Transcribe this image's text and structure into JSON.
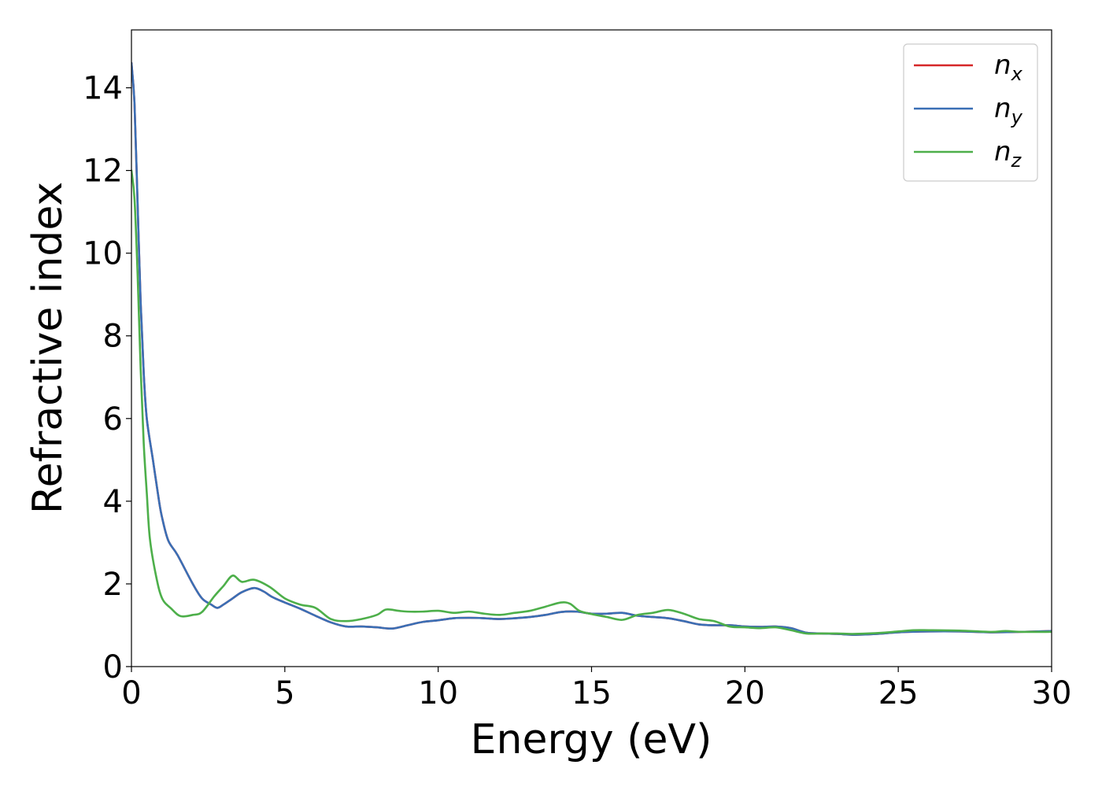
{
  "chart_data": {
    "type": "line",
    "xlabel": "Energy (eV)",
    "ylabel": "Refractive index",
    "xlim": [
      0,
      30
    ],
    "ylim": [
      0,
      15.4
    ],
    "xticks": [
      "0",
      "5",
      "10",
      "15",
      "20",
      "25",
      "30"
    ],
    "yticks": [
      "0",
      "2",
      "4",
      "6",
      "8",
      "10",
      "12",
      "14"
    ],
    "grid": false,
    "legend_position": "top-right",
    "series": [
      {
        "name": "n",
        "subscript": "x",
        "color": "#d62728",
        "points": [
          [
            0,
            14.6
          ],
          [
            0.1,
            13.6
          ],
          [
            0.2,
            11.2
          ],
          [
            0.3,
            8.8
          ],
          [
            0.4,
            7.1
          ],
          [
            0.5,
            6.0
          ],
          [
            0.7,
            5.0
          ],
          [
            0.9,
            4.0
          ],
          [
            1.0,
            3.6
          ],
          [
            1.2,
            3.05
          ],
          [
            1.5,
            2.7
          ],
          [
            2.0,
            2.0
          ],
          [
            2.3,
            1.65
          ],
          [
            2.6,
            1.5
          ],
          [
            2.8,
            1.42
          ],
          [
            3.0,
            1.5
          ],
          [
            3.3,
            1.65
          ],
          [
            3.6,
            1.8
          ],
          [
            4.0,
            1.9
          ],
          [
            4.3,
            1.82
          ],
          [
            4.6,
            1.68
          ],
          [
            5.0,
            1.55
          ],
          [
            5.5,
            1.4
          ],
          [
            6.0,
            1.23
          ],
          [
            6.5,
            1.07
          ],
          [
            7.0,
            0.97
          ],
          [
            7.5,
            0.97
          ],
          [
            8.0,
            0.95
          ],
          [
            8.5,
            0.92
          ],
          [
            9.0,
            1.0
          ],
          [
            9.5,
            1.08
          ],
          [
            10.0,
            1.12
          ],
          [
            10.5,
            1.17
          ],
          [
            11.0,
            1.18
          ],
          [
            11.5,
            1.17
          ],
          [
            12.0,
            1.15
          ],
          [
            12.5,
            1.17
          ],
          [
            13.0,
            1.2
          ],
          [
            13.5,
            1.25
          ],
          [
            14.0,
            1.32
          ],
          [
            14.5,
            1.33
          ],
          [
            15.0,
            1.28
          ],
          [
            15.5,
            1.28
          ],
          [
            16.0,
            1.3
          ],
          [
            16.5,
            1.23
          ],
          [
            17.0,
            1.2
          ],
          [
            17.5,
            1.17
          ],
          [
            18.0,
            1.1
          ],
          [
            18.5,
            1.02
          ],
          [
            19.0,
            1.0
          ],
          [
            19.5,
            1.0
          ],
          [
            20.0,
            0.97
          ],
          [
            20.5,
            0.96
          ],
          [
            21.0,
            0.97
          ],
          [
            21.5,
            0.93
          ],
          [
            22.0,
            0.82
          ],
          [
            22.5,
            0.8
          ],
          [
            23.0,
            0.79
          ],
          [
            23.5,
            0.77
          ],
          [
            24.0,
            0.78
          ],
          [
            24.5,
            0.8
          ],
          [
            25.0,
            0.83
          ],
          [
            26.0,
            0.85
          ],
          [
            27.0,
            0.85
          ],
          [
            28.0,
            0.83
          ],
          [
            29.0,
            0.84
          ],
          [
            30.0,
            0.86
          ]
        ]
      },
      {
        "name": "n",
        "subscript": "y",
        "color": "#3a6fb5",
        "points": [
          [
            0,
            14.6
          ],
          [
            0.1,
            13.6
          ],
          [
            0.2,
            11.2
          ],
          [
            0.3,
            8.8
          ],
          [
            0.4,
            7.1
          ],
          [
            0.5,
            6.0
          ],
          [
            0.7,
            5.0
          ],
          [
            0.9,
            4.0
          ],
          [
            1.0,
            3.6
          ],
          [
            1.2,
            3.05
          ],
          [
            1.5,
            2.7
          ],
          [
            2.0,
            2.0
          ],
          [
            2.3,
            1.65
          ],
          [
            2.6,
            1.5
          ],
          [
            2.8,
            1.42
          ],
          [
            3.0,
            1.5
          ],
          [
            3.3,
            1.65
          ],
          [
            3.6,
            1.8
          ],
          [
            4.0,
            1.9
          ],
          [
            4.3,
            1.82
          ],
          [
            4.6,
            1.68
          ],
          [
            5.0,
            1.55
          ],
          [
            5.5,
            1.4
          ],
          [
            6.0,
            1.23
          ],
          [
            6.5,
            1.07
          ],
          [
            7.0,
            0.97
          ],
          [
            7.5,
            0.97
          ],
          [
            8.0,
            0.95
          ],
          [
            8.5,
            0.92
          ],
          [
            9.0,
            1.0
          ],
          [
            9.5,
            1.08
          ],
          [
            10.0,
            1.12
          ],
          [
            10.5,
            1.17
          ],
          [
            11.0,
            1.18
          ],
          [
            11.5,
            1.17
          ],
          [
            12.0,
            1.15
          ],
          [
            12.5,
            1.17
          ],
          [
            13.0,
            1.2
          ],
          [
            13.5,
            1.25
          ],
          [
            14.0,
            1.32
          ],
          [
            14.5,
            1.33
          ],
          [
            15.0,
            1.28
          ],
          [
            15.5,
            1.28
          ],
          [
            16.0,
            1.3
          ],
          [
            16.5,
            1.23
          ],
          [
            17.0,
            1.2
          ],
          [
            17.5,
            1.17
          ],
          [
            18.0,
            1.1
          ],
          [
            18.5,
            1.02
          ],
          [
            19.0,
            1.0
          ],
          [
            19.5,
            1.0
          ],
          [
            20.0,
            0.97
          ],
          [
            20.5,
            0.96
          ],
          [
            21.0,
            0.97
          ],
          [
            21.5,
            0.93
          ],
          [
            22.0,
            0.82
          ],
          [
            22.5,
            0.8
          ],
          [
            23.0,
            0.79
          ],
          [
            23.5,
            0.77
          ],
          [
            24.0,
            0.78
          ],
          [
            24.5,
            0.8
          ],
          [
            25.0,
            0.83
          ],
          [
            26.0,
            0.85
          ],
          [
            27.0,
            0.85
          ],
          [
            28.0,
            0.83
          ],
          [
            29.0,
            0.84
          ],
          [
            30.0,
            0.86
          ]
        ]
      },
      {
        "name": "n",
        "subscript": "z",
        "color": "#4daf4a",
        "points": [
          [
            0,
            12.0
          ],
          [
            0.1,
            11.3
          ],
          [
            0.2,
            9.5
          ],
          [
            0.3,
            7.2
          ],
          [
            0.4,
            5.4
          ],
          [
            0.5,
            4.2
          ],
          [
            0.6,
            3.1
          ],
          [
            0.8,
            2.2
          ],
          [
            1.0,
            1.65
          ],
          [
            1.3,
            1.4
          ],
          [
            1.6,
            1.22
          ],
          [
            2.0,
            1.25
          ],
          [
            2.3,
            1.32
          ],
          [
            2.7,
            1.7
          ],
          [
            3.0,
            1.95
          ],
          [
            3.3,
            2.2
          ],
          [
            3.6,
            2.05
          ],
          [
            4.0,
            2.1
          ],
          [
            4.5,
            1.93
          ],
          [
            5.0,
            1.65
          ],
          [
            5.5,
            1.5
          ],
          [
            6.0,
            1.42
          ],
          [
            6.5,
            1.15
          ],
          [
            7.0,
            1.1
          ],
          [
            7.5,
            1.15
          ],
          [
            8.0,
            1.25
          ],
          [
            8.3,
            1.38
          ],
          [
            8.7,
            1.35
          ],
          [
            9.0,
            1.33
          ],
          [
            9.5,
            1.33
          ],
          [
            10.0,
            1.35
          ],
          [
            10.5,
            1.3
          ],
          [
            11.0,
            1.33
          ],
          [
            11.5,
            1.28
          ],
          [
            12.0,
            1.25
          ],
          [
            12.5,
            1.3
          ],
          [
            13.0,
            1.35
          ],
          [
            13.5,
            1.45
          ],
          [
            14.0,
            1.55
          ],
          [
            14.3,
            1.52
          ],
          [
            14.6,
            1.35
          ],
          [
            15.0,
            1.27
          ],
          [
            15.5,
            1.2
          ],
          [
            16.0,
            1.13
          ],
          [
            16.5,
            1.25
          ],
          [
            17.0,
            1.3
          ],
          [
            17.5,
            1.37
          ],
          [
            18.0,
            1.28
          ],
          [
            18.5,
            1.15
          ],
          [
            19.0,
            1.1
          ],
          [
            19.5,
            0.97
          ],
          [
            20.0,
            0.95
          ],
          [
            20.5,
            0.93
          ],
          [
            21.0,
            0.95
          ],
          [
            21.5,
            0.88
          ],
          [
            22.0,
            0.8
          ],
          [
            22.5,
            0.8
          ],
          [
            23.0,
            0.8
          ],
          [
            23.5,
            0.79
          ],
          [
            24.0,
            0.8
          ],
          [
            24.5,
            0.82
          ],
          [
            25.0,
            0.85
          ],
          [
            25.5,
            0.88
          ],
          [
            26.0,
            0.88
          ],
          [
            27.0,
            0.87
          ],
          [
            28.0,
            0.84
          ],
          [
            28.5,
            0.86
          ],
          [
            29.0,
            0.84
          ],
          [
            30.0,
            0.84
          ]
        ]
      }
    ]
  }
}
